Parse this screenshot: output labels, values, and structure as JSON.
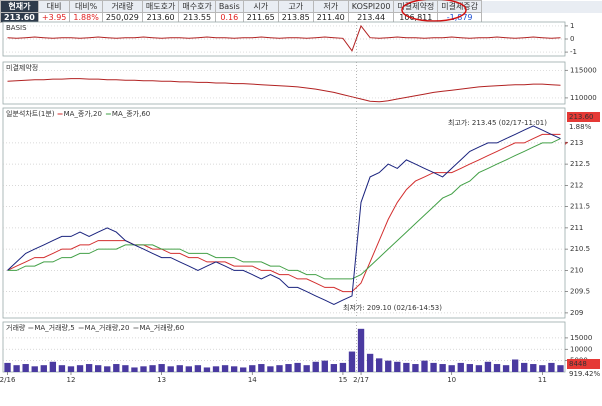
{
  "header": {
    "labels": [
      "현재가",
      "대비",
      "대비%",
      "거래량",
      "매도호가",
      "매수호가",
      "Basis",
      "시가",
      "고가",
      "저가",
      "KOSPI200",
      "미결제약정",
      "미결제증감"
    ],
    "values": [
      "213.60",
      "+3.95",
      "1.88%",
      "250,029",
      "213.60",
      "213.55",
      "0.16",
      "211.65",
      "213.85",
      "211.40",
      "213.44",
      "106,811",
      "-1,879"
    ]
  },
  "chart_data": [
    {
      "type": "line",
      "title": "BASIS",
      "color": "#b22222",
      "ylim": [
        -1.3,
        1.3
      ],
      "yticks": [
        1,
        0,
        -1
      ],
      "grid": true,
      "values": [
        0.1,
        0.05,
        0.1,
        0.15,
        0.1,
        0.05,
        0.1,
        0.1,
        0.05,
        0.1,
        0.15,
        0.1,
        0.05,
        0.1,
        0.1,
        0.15,
        0.1,
        0.05,
        0.1,
        0.1,
        0.05,
        0.1,
        0.15,
        0.1,
        0.1,
        0.05,
        0.1,
        0.1,
        0.15,
        0.1,
        0.05,
        0.1,
        0.1,
        0.05,
        0.1,
        0.15,
        0.1,
        0.05,
        -0.9,
        1.0,
        0.1,
        0.05,
        0.1,
        0.15,
        0.1,
        0.1,
        0.05,
        0.1,
        0.1,
        0.15,
        0.1,
        0.05,
        0.1,
        0.1,
        0.15,
        0.1,
        0.05,
        0.1,
        0.15,
        0.1,
        0.05,
        0.1
      ]
    },
    {
      "type": "line",
      "title": "미결제약정",
      "color": "#b22222",
      "ylim": [
        108900,
        116500
      ],
      "yticks": [
        115000,
        110000
      ],
      "grid": true,
      "values": [
        113000,
        113100,
        113200,
        113300,
        113300,
        113400,
        113400,
        113500,
        113500,
        113400,
        113400,
        113300,
        113300,
        113200,
        113200,
        113100,
        113100,
        113000,
        113000,
        112900,
        112900,
        112800,
        112800,
        112700,
        112700,
        112600,
        112600,
        112500,
        112400,
        112300,
        112200,
        112100,
        112000,
        111800,
        111600,
        111300,
        111000,
        110600,
        110200,
        109800,
        109400,
        109300,
        109500,
        109800,
        110100,
        110400,
        110700,
        111000,
        111200,
        111400,
        111600,
        111800,
        112000,
        112100,
        112200,
        112300,
        112400,
        112400,
        112500,
        112500,
        112400,
        112300
      ]
    },
    {
      "type": "line",
      "title": "일분석차트(1분)",
      "color": "#1a237e",
      "ylim": [
        208.88,
        213.82
      ],
      "yticks": [
        213,
        212.5,
        212,
        211.5,
        211,
        210.5,
        210,
        209.5,
        209
      ],
      "grid": true,
      "values": [
        210.0,
        210.2,
        210.4,
        210.5,
        210.6,
        210.7,
        210.8,
        210.8,
        210.9,
        210.8,
        210.9,
        211.0,
        210.9,
        210.7,
        210.6,
        210.5,
        210.4,
        210.3,
        210.3,
        210.2,
        210.1,
        210.0,
        210.1,
        210.2,
        210.1,
        210.0,
        210.0,
        209.9,
        209.8,
        209.9,
        209.8,
        209.6,
        209.6,
        209.5,
        209.4,
        209.3,
        209.2,
        209.3,
        209.4,
        211.6,
        212.2,
        212.3,
        212.5,
        212.4,
        212.6,
        212.5,
        212.4,
        212.3,
        212.2,
        212.4,
        212.6,
        212.8,
        212.9,
        213.0,
        213.0,
        213.1,
        213.2,
        213.3,
        213.4,
        213.3,
        213.2,
        213.1
      ],
      "series": [
        {
          "name": "MA_종가,20",
          "color": "#d32f2f",
          "values": [
            210.0,
            210.1,
            210.2,
            210.3,
            210.3,
            210.4,
            210.5,
            210.5,
            210.6,
            210.6,
            210.7,
            210.7,
            210.7,
            210.7,
            210.6,
            210.6,
            210.5,
            210.5,
            210.4,
            210.4,
            210.3,
            210.3,
            210.2,
            210.2,
            210.2,
            210.1,
            210.1,
            210.1,
            210.0,
            210.0,
            209.9,
            209.9,
            209.8,
            209.8,
            209.7,
            209.6,
            209.6,
            209.5,
            209.5,
            209.7,
            210.2,
            210.7,
            211.2,
            211.6,
            211.9,
            212.1,
            212.2,
            212.3,
            212.3,
            212.3,
            212.4,
            212.5,
            212.6,
            212.7,
            212.8,
            212.9,
            213.0,
            213.0,
            213.1,
            213.2,
            213.2,
            213.2
          ]
        },
        {
          "name": "MA_종가,60",
          "color": "#43a047",
          "values": [
            210.0,
            210.0,
            210.1,
            210.1,
            210.2,
            210.2,
            210.3,
            210.3,
            210.4,
            210.4,
            210.5,
            210.5,
            210.5,
            210.6,
            210.6,
            210.6,
            210.6,
            210.5,
            210.5,
            210.5,
            210.4,
            210.4,
            210.4,
            210.3,
            210.3,
            210.3,
            210.2,
            210.2,
            210.2,
            210.1,
            210.1,
            210.0,
            210.0,
            209.9,
            209.9,
            209.8,
            209.8,
            209.8,
            209.8,
            209.9,
            210.1,
            210.3,
            210.5,
            210.7,
            210.9,
            211.1,
            211.3,
            211.5,
            211.7,
            211.8,
            212.0,
            212.1,
            212.3,
            212.4,
            212.5,
            212.6,
            212.7,
            212.8,
            212.9,
            213.0,
            213.0,
            213.1
          ]
        }
      ],
      "last_label": "213.60",
      "last_pct": "1.88%",
      "high_note": "최고가: 213.45 (02/17-11:01)",
      "low_note": "최저가: 209.10 (02/16-14:53)"
    },
    {
      "type": "bar",
      "title": "거래량",
      "color": "#4a3aa0",
      "ylim": [
        0,
        22000
      ],
      "yticks": [
        15000,
        10000,
        5000
      ],
      "grid": true,
      "legend": [
        "MA_거래량,5",
        "MA_거래량,20",
        "MA_거래량,60"
      ],
      "values": [
        4000,
        3000,
        3500,
        2500,
        3000,
        4500,
        3000,
        2500,
        3000,
        3500,
        3000,
        2500,
        3500,
        3000,
        2000,
        2500,
        3000,
        3500,
        2500,
        3000,
        2500,
        3000,
        2000,
        2500,
        3000,
        2500,
        2000,
        3000,
        3500,
        2500,
        3000,
        3500,
        4000,
        3000,
        4500,
        5000,
        3500,
        4000,
        9000,
        19000,
        8000,
        6000,
        5000,
        4500,
        4000,
        3500,
        5000,
        4000,
        3500,
        3000,
        4000,
        3500,
        3000,
        4500,
        3500,
        3000,
        5500,
        4000,
        3500,
        3000,
        4000,
        3000
      ],
      "last_label": "8448",
      "last_pct": "919.42%",
      "categories": [
        "2/16",
        null,
        null,
        null,
        null,
        null,
        null,
        "12",
        null,
        null,
        null,
        null,
        null,
        null,
        null,
        null,
        null,
        "13",
        null,
        null,
        null,
        null,
        null,
        null,
        null,
        null,
        null,
        "14",
        null,
        null,
        null,
        null,
        null,
        null,
        null,
        null,
        null,
        "15",
        null,
        "2/17",
        null,
        null,
        null,
        null,
        null,
        null,
        null,
        null,
        null,
        "10",
        null,
        null,
        null,
        null,
        null,
        null,
        null,
        null,
        null,
        "11",
        null,
        null
      ]
    }
  ]
}
